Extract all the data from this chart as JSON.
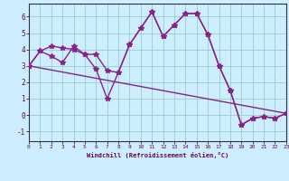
{
  "xlabel": "Windchill (Refroidissement éolien,°C)",
  "line1_x": [
    0,
    1,
    2,
    3,
    4,
    5,
    6,
    7,
    8,
    9,
    10,
    11,
    12,
    13,
    14,
    15,
    16,
    17,
    18,
    19,
    20,
    21,
    22,
    23
  ],
  "line1_y": [
    3.0,
    3.9,
    4.2,
    4.1,
    4.0,
    3.7,
    2.8,
    1.0,
    2.6,
    4.3,
    5.3,
    6.3,
    4.8,
    5.5,
    6.2,
    6.2,
    4.9,
    3.0,
    1.5,
    -0.6,
    -0.2,
    -0.1,
    -0.2,
    0.1
  ],
  "line2_x": [
    0,
    1,
    2,
    3,
    4,
    5,
    6,
    7,
    8,
    9,
    10,
    11,
    12,
    13,
    14,
    15,
    16,
    17,
    18,
    19,
    20,
    21,
    22,
    23
  ],
  "line2_y": [
    3.0,
    3.9,
    3.6,
    3.2,
    4.2,
    3.7,
    3.7,
    2.7,
    2.6,
    4.3,
    5.3,
    6.3,
    4.8,
    5.5,
    6.2,
    6.2,
    4.9,
    3.0,
    1.5,
    -0.6,
    -0.2,
    -0.1,
    -0.2,
    0.1
  ],
  "line3_x": [
    0,
    23
  ],
  "line3_y": [
    3.0,
    0.1
  ],
  "line_color": "#882288",
  "bg_color": "#cceeff",
  "grid_color": "#99cccc",
  "axis_color": "#660066",
  "spine_color": "#333333",
  "ylim": [
    -1.6,
    6.8
  ],
  "xlim": [
    0,
    23
  ],
  "yticks": [
    -1,
    0,
    1,
    2,
    3,
    4,
    5,
    6
  ],
  "xticks": [
    0,
    1,
    2,
    3,
    4,
    5,
    6,
    7,
    8,
    9,
    10,
    11,
    12,
    13,
    14,
    15,
    16,
    17,
    18,
    19,
    20,
    21,
    22,
    23
  ],
  "marker": "*",
  "markersize": 4,
  "linewidth": 1.0
}
